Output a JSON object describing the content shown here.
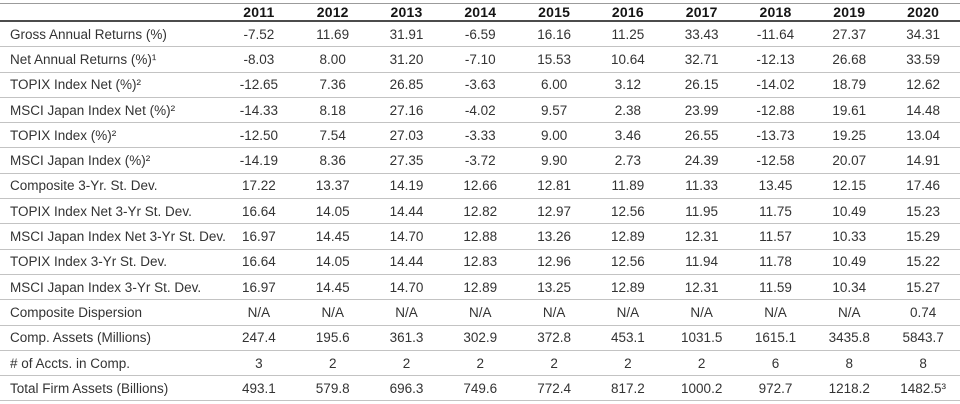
{
  "chart_data": {
    "type": "table",
    "columns": [
      "",
      "2011",
      "2012",
      "2013",
      "2014",
      "2015",
      "2016",
      "2017",
      "2018",
      "2019",
      "2020"
    ],
    "rows": [
      {
        "label": "Gross Annual Returns (%)",
        "values": [
          "-7.52",
          "11.69",
          "31.91",
          "-6.59",
          "16.16",
          "11.25",
          "33.43",
          "-11.64",
          "27.37",
          "34.31"
        ]
      },
      {
        "label": "Net Annual Returns (%)¹",
        "values": [
          "-8.03",
          "8.00",
          "31.20",
          "-7.10",
          "15.53",
          "10.64",
          "32.71",
          "-12.13",
          "26.68",
          "33.59"
        ]
      },
      {
        "label": "TOPIX Index Net (%)²",
        "values": [
          "-12.65",
          "7.36",
          "26.85",
          "-3.63",
          "6.00",
          "3.12",
          "26.15",
          "-14.02",
          "18.79",
          "12.62"
        ]
      },
      {
        "label": "MSCI Japan Index Net (%)²",
        "values": [
          "-14.33",
          "8.18",
          "27.16",
          "-4.02",
          "9.57",
          "2.38",
          "23.99",
          "-12.88",
          "19.61",
          "14.48"
        ]
      },
      {
        "label": "TOPIX Index (%)²",
        "values": [
          "-12.50",
          "7.54",
          "27.03",
          "-3.33",
          "9.00",
          "3.46",
          "26.55",
          "-13.73",
          "19.25",
          "13.04"
        ]
      },
      {
        "label": "MSCI Japan Index (%)²",
        "values": [
          "-14.19",
          "8.36",
          "27.35",
          "-3.72",
          "9.90",
          "2.73",
          "24.39",
          "-12.58",
          "20.07",
          "14.91"
        ]
      },
      {
        "label": "Composite 3-Yr. St. Dev.",
        "values": [
          "17.22",
          "13.37",
          "14.19",
          "12.66",
          "12.81",
          "11.89",
          "11.33",
          "13.45",
          "12.15",
          "17.46"
        ]
      },
      {
        "label": "TOPIX Index Net 3-Yr St. Dev.",
        "values": [
          "16.64",
          "14.05",
          "14.44",
          "12.82",
          "12.97",
          "12.56",
          "11.95",
          "11.75",
          "10.49",
          "15.23"
        ]
      },
      {
        "label": "MSCI Japan Index Net 3-Yr St. Dev.",
        "values": [
          "16.97",
          "14.45",
          "14.70",
          "12.88",
          "13.26",
          "12.89",
          "12.31",
          "11.57",
          "10.33",
          "15.29"
        ]
      },
      {
        "label": "TOPIX Index 3-Yr St. Dev.",
        "values": [
          "16.64",
          "14.05",
          "14.44",
          "12.83",
          "12.96",
          "12.56",
          "11.94",
          "11.78",
          "10.49",
          "15.22"
        ]
      },
      {
        "label": "MSCI Japan Index 3-Yr St. Dev.",
        "values": [
          "16.97",
          "14.45",
          "14.70",
          "12.89",
          "13.25",
          "12.89",
          "12.31",
          "11.59",
          "10.34",
          "15.27"
        ]
      },
      {
        "label": "Composite Dispersion",
        "values": [
          "N/A",
          "N/A",
          "N/A",
          "N/A",
          "N/A",
          "N/A",
          "N/A",
          "N/A",
          "N/A",
          "0.74"
        ]
      },
      {
        "label": "Comp. Assets (Millions)",
        "values": [
          "247.4",
          "195.6",
          "361.3",
          "302.9",
          "372.8",
          "453.1",
          "1031.5",
          "1615.1",
          "3435.8",
          "5843.7"
        ]
      },
      {
        "label": "# of Accts. in Comp.",
        "values": [
          "3",
          "2",
          "2",
          "2",
          "2",
          "2",
          "2",
          "6",
          "8",
          "8"
        ]
      },
      {
        "label": "Total Firm Assets (Billions)",
        "values": [
          "493.1",
          "579.8",
          "696.3",
          "749.6",
          "772.4",
          "817.2",
          "1000.2",
          "972.7",
          "1218.2",
          "1482.5³"
        ]
      }
    ]
  },
  "colors": {
    "background": "#ffffff",
    "text": "#333333",
    "header_text": "#141414",
    "row_line": "#c3c3c3",
    "header_line": "#4c4c4c",
    "top_line": "#9b9b9b"
  }
}
